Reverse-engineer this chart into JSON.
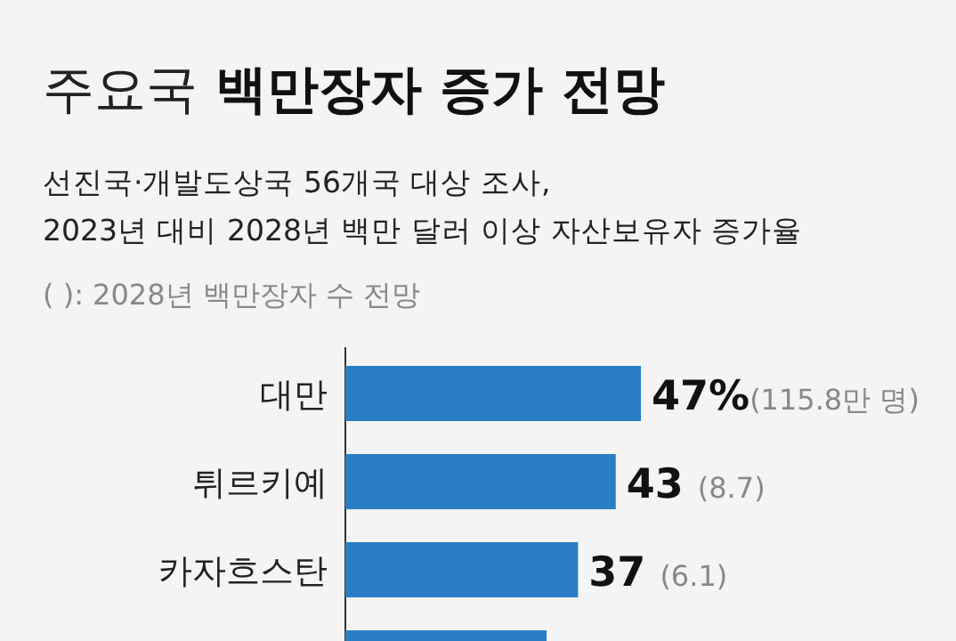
{
  "chart_data": {
    "type": "bar",
    "orientation": "horizontal",
    "title": "주요국 백만장자 증가 전망",
    "subtitle": "선진국·개발도상국 56개국 대상 조사,\n2023년 대비 2028년 백만 달러 이상 자산보유자 증가율",
    "categories": [
      "대만",
      "튀르키예",
      "카자흐스탄",
      null
    ],
    "values": [
      47,
      43,
      37,
      32
    ],
    "color": "#2a7fc4",
    "value_labels": [
      "47%(115.8만 명)",
      "43 (8.7)",
      "37 (6.1)",
      null
    ],
    "annotations": [
      "( ): 2028년 백만장자 수 전망"
    ]
  }
}
